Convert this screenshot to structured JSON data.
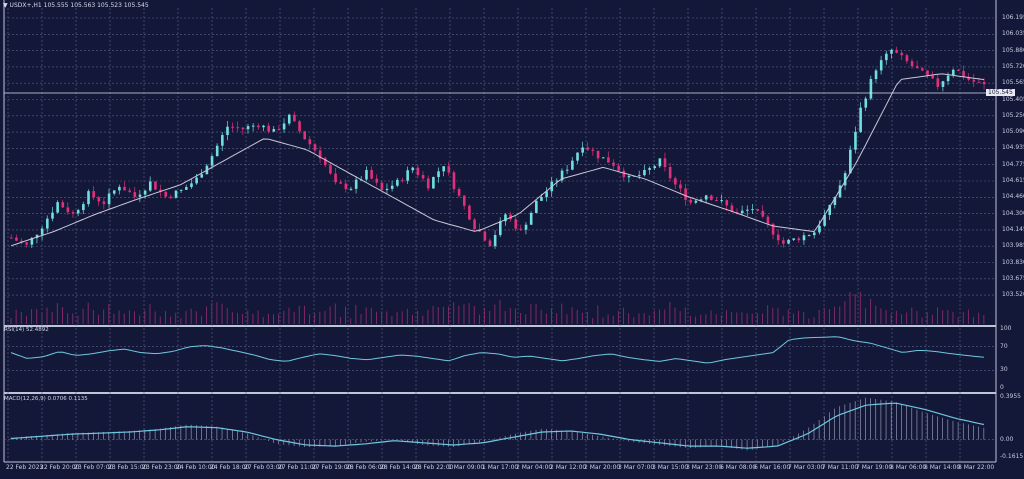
{
  "header": {
    "menu_icon": "triangle-down-icon",
    "symbol": "USDX+,H1",
    "ohlc": "105.555 105.563 105.523 105.545"
  },
  "current_price_tag": "105.545",
  "colors": {
    "background": "#141838",
    "grid": "#5a6190",
    "bull": "#6fe0e0",
    "bear": "#e0307a",
    "ma": "#c8c8d8",
    "volume": "#8a2a6a",
    "indicator_line": "#6ec8e0"
  },
  "rsi": {
    "label": "RSI(14) 52.4892",
    "levels": [
      "100",
      "70",
      "30",
      "0"
    ]
  },
  "macd": {
    "label": "MACD(12,26,9) 0.0706 0.1135",
    "levels": [
      "0.3955",
      "0.00",
      "-0.1615"
    ]
  },
  "chart_data": [
    {
      "type": "candlestick",
      "title": "USDX+,H1 105.555 105.563 105.523 105.545",
      "xlabel": "",
      "ylabel": "",
      "ylim": [
        103.52,
        106.195
      ],
      "y_ticks": [
        "106.195",
        "106.035",
        "105.880",
        "105.720",
        "105.565",
        "105.405",
        "105.250",
        "105.090",
        "104.935",
        "104.775",
        "104.615",
        "104.460",
        "104.300",
        "104.145",
        "103.985",
        "103.830",
        "103.675",
        "103.520"
      ],
      "x_ticks": [
        "22 Feb 2023",
        "22 Feb 20:00",
        "23 Feb 07:00",
        "23 Feb 15:00",
        "23 Feb 23:00",
        "24 Feb 10:00",
        "24 Feb 18:00",
        "27 Feb 03:00",
        "27 Feb 11:00",
        "27 Feb 19:00",
        "28 Feb 06:00",
        "28 Feb 14:00",
        "28 Feb 22:00",
        "1 Mar 09:00",
        "1 Mar 17:00",
        "2 Mar 04:00",
        "2 Mar 12:00",
        "2 Mar 20:00",
        "3 Mar 07:00",
        "3 Mar 15:00",
        "3 Mar 23:00",
        "6 Mar 08:00",
        "6 Mar 16:00",
        "7 Mar 03:00",
        "7 Mar 11:00",
        "7 Mar 19:00",
        "8 Mar 06:00",
        "8 Mar 14:00",
        "8 Mar 22:00"
      ],
      "close_approx": [
        104.25,
        104.18,
        104.35,
        104.55,
        104.45,
        104.62,
        104.55,
        104.7,
        104.6,
        104.72,
        104.6,
        104.65,
        104.75,
        104.95,
        105.2,
        105.18,
        105.22,
        105.15,
        105.28,
        105.1,
        104.95,
        104.7,
        104.68,
        104.8,
        104.65,
        104.72,
        104.85,
        104.7,
        104.88,
        104.6,
        104.35,
        104.2,
        104.45,
        104.3,
        104.55,
        104.7,
        104.85,
        105.05,
        104.95,
        104.88,
        104.75,
        104.8,
        104.9,
        104.7,
        104.55,
        104.62,
        104.55,
        104.45,
        104.5,
        104.35,
        104.2,
        104.25,
        104.3,
        104.5,
        104.8,
        105.35,
        105.7,
        105.85,
        105.75,
        105.65,
        105.55,
        105.7,
        105.6,
        105.55
      ],
      "moving_average_approx": [
        104.18,
        104.3,
        104.45,
        104.58,
        104.7,
        104.9,
        105.1,
        105.0,
        104.8,
        104.6,
        104.4,
        104.3,
        104.45,
        104.75,
        104.85,
        104.75,
        104.6,
        104.48,
        104.35,
        104.3,
        104.9,
        105.6,
        105.65,
        105.6
      ],
      "current_price": 105.545,
      "legend": []
    },
    {
      "type": "bar",
      "title": "Volume",
      "note": "tick volume histogram under price panel, relative heights only"
    },
    {
      "type": "line",
      "title": "RSI(14) 52.4892",
      "ylim": [
        0,
        100
      ],
      "levels": [
        30,
        70
      ],
      "values_approx": [
        60,
        50,
        53,
        62,
        55,
        58,
        63,
        66,
        60,
        58,
        62,
        70,
        72,
        68,
        62,
        56,
        48,
        45,
        52,
        58,
        55,
        50,
        48,
        52,
        56,
        54,
        50,
        46,
        55,
        60,
        58,
        52,
        54,
        50,
        46,
        50,
        55,
        58,
        52,
        48,
        45,
        50,
        46,
        42,
        48,
        52,
        56,
        60,
        82,
        85,
        86,
        87,
        80,
        76,
        68,
        60,
        64,
        62,
        58,
        55,
        52
      ]
    },
    {
      "type": "bar+line",
      "title": "MACD(12,26,9) 0.0706 0.1135",
      "ylim": [
        -0.1615,
        0.3955
      ],
      "macd_values_approx": [
        0.02,
        0.04,
        0.06,
        0.07,
        0.08,
        0.1,
        0.14,
        0.12,
        0.06,
        -0.04,
        -0.07,
        -0.06,
        -0.02,
        0.0,
        -0.05,
        -0.07,
        -0.02,
        0.05,
        0.1,
        0.08,
        0.03,
        -0.02,
        -0.05,
        -0.08,
        -0.06,
        -0.1,
        -0.05,
        0.1,
        0.3,
        0.39,
        0.35,
        0.25,
        0.17,
        0.11
      ],
      "signal_values_approx": [
        0.01,
        0.03,
        0.05,
        0.06,
        0.07,
        0.09,
        0.12,
        0.11,
        0.07,
        0.0,
        -0.05,
        -0.06,
        -0.04,
        -0.01,
        -0.03,
        -0.05,
        -0.03,
        0.02,
        0.07,
        0.08,
        0.05,
        0.0,
        -0.03,
        -0.06,
        -0.06,
        -0.08,
        -0.06,
        0.05,
        0.22,
        0.32,
        0.34,
        0.28,
        0.2,
        0.14
      ]
    }
  ]
}
